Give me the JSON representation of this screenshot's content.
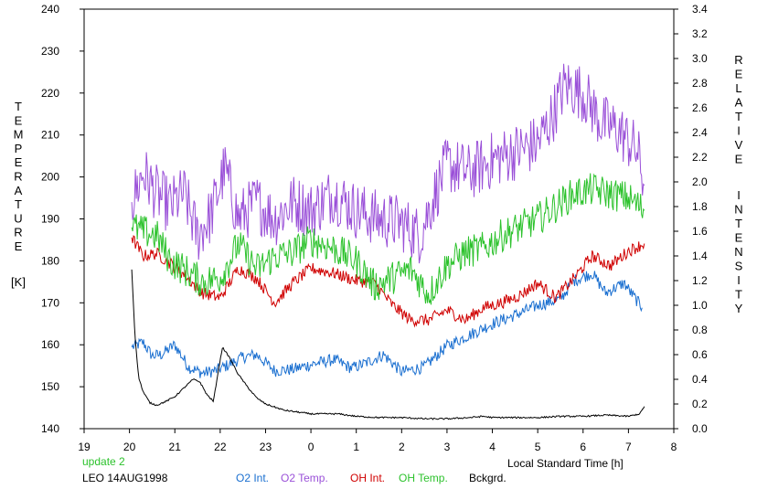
{
  "chart_data": {
    "type": "line",
    "xlabel": "Local Standard Time [h]",
    "x_tick_labels": [
      "19",
      "20",
      "21",
      "22",
      "23",
      "0",
      "1",
      "2",
      "3",
      "4",
      "5",
      "6",
      "7",
      "8"
    ],
    "xlim": [
      19,
      32
    ],
    "y_left": {
      "label_letters": [
        "T",
        "E",
        "M",
        "P",
        "E",
        "R",
        "A",
        "T",
        "U",
        "R",
        "E"
      ],
      "unit": "[K]",
      "ylim": [
        140,
        240
      ],
      "ticks": [
        "140",
        "150",
        "160",
        "170",
        "180",
        "190",
        "200",
        "210",
        "220",
        "230",
        "240"
      ]
    },
    "y_right": {
      "label_word1": [
        "R",
        "E",
        "L",
        "A",
        "T",
        "I",
        "V",
        "E"
      ],
      "label_word2": [
        "I",
        "N",
        "T",
        "E",
        "N",
        "S",
        "I",
        "T",
        "Y"
      ],
      "ylim": [
        0.0,
        3.4
      ],
      "ticks": [
        "0.0",
        "0.2",
        "0.4",
        "0.6",
        "0.8",
        "1.0",
        "1.2",
        "1.4",
        "1.6",
        "1.8",
        "2.0",
        "2.2",
        "2.4",
        "2.6",
        "2.8",
        "3.0",
        "3.2",
        "3.4"
      ]
    },
    "annotations": {
      "update": "update 2",
      "station_date": "LEO 14AUG1998"
    },
    "series": [
      {
        "name": "O2 Int.",
        "axis": "right",
        "color": "#1a6fd0",
        "x": [
          20.05,
          20.3,
          20.5,
          20.7,
          21.0,
          21.3,
          21.6,
          21.9,
          22.2,
          22.5,
          22.8,
          23.2,
          23.6,
          24.0,
          24.5,
          24.9,
          25.2,
          25.6,
          26.0,
          26.5,
          27.0,
          27.5,
          28.0,
          28.5,
          29.0,
          29.5,
          29.8,
          30.2,
          30.5,
          30.9,
          31.3
        ],
        "y": [
          0.66,
          0.7,
          0.59,
          0.6,
          0.68,
          0.5,
          0.45,
          0.47,
          0.52,
          0.58,
          0.6,
          0.47,
          0.48,
          0.52,
          0.56,
          0.49,
          0.53,
          0.6,
          0.46,
          0.5,
          0.67,
          0.76,
          0.85,
          0.92,
          1.0,
          1.05,
          1.2,
          1.26,
          1.1,
          1.18,
          0.98
        ],
        "noise": 0.05
      },
      {
        "name": "O2 Temp.",
        "axis": "left",
        "color": "#9a50d8",
        "x": [
          20.05,
          20.3,
          20.6,
          20.9,
          21.2,
          21.5,
          21.8,
          22.1,
          22.4,
          22.8,
          23.2,
          23.6,
          24.0,
          24.5,
          25.0,
          25.5,
          26.0,
          26.4,
          26.7,
          27.0,
          27.5,
          28.0,
          28.5,
          29.0,
          29.3,
          29.6,
          30.0,
          30.4,
          30.8,
          31.2,
          31.35
        ],
        "y": [
          194,
          201,
          196,
          193,
          196,
          186,
          191,
          202,
          190,
          194,
          190,
          194,
          192,
          196,
          192,
          190,
          189,
          186,
          195,
          203,
          201,
          204,
          206,
          208,
          214,
          222,
          220,
          213,
          211,
          206,
          198
        ],
        "noise": 7
      },
      {
        "name": "OH Int.",
        "axis": "right",
        "color": "#d00000",
        "x": [
          20.05,
          20.3,
          20.6,
          20.9,
          21.2,
          21.6,
          22.0,
          22.4,
          22.8,
          23.2,
          23.6,
          24.0,
          24.5,
          25.0,
          25.4,
          25.8,
          26.2,
          26.6,
          27.0,
          27.4,
          27.8,
          28.2,
          28.6,
          29.0,
          29.4,
          29.8,
          30.2,
          30.6,
          31.0,
          31.35
        ],
        "y": [
          1.55,
          1.4,
          1.42,
          1.34,
          1.25,
          1.1,
          1.06,
          1.3,
          1.22,
          1.02,
          1.18,
          1.3,
          1.26,
          1.2,
          1.18,
          1.0,
          0.88,
          0.88,
          0.96,
          0.88,
          0.98,
          1.02,
          1.08,
          1.18,
          1.06,
          1.22,
          1.4,
          1.32,
          1.44,
          1.5
        ],
        "noise": 0.05
      },
      {
        "name": "OH Temp.",
        "axis": "left",
        "color": "#2cc22c",
        "x": [
          20.05,
          20.3,
          20.6,
          20.9,
          21.2,
          21.6,
          22.0,
          22.4,
          22.8,
          23.2,
          23.6,
          24.0,
          24.5,
          25.0,
          25.4,
          25.8,
          26.2,
          26.6,
          27.0,
          27.4,
          27.8,
          28.2,
          28.6,
          29.0,
          29.4,
          29.8,
          30.2,
          30.6,
          31.0,
          31.35
        ],
        "y": [
          188,
          187,
          186,
          180,
          178,
          175,
          176,
          184,
          178,
          181,
          182,
          185,
          183,
          180,
          174,
          176,
          178,
          172,
          179,
          182,
          183,
          186,
          188,
          190,
          193,
          196,
          197,
          196,
          195,
          192
        ],
        "noise": 4
      },
      {
        "name": "Bckgrd.",
        "axis": "right",
        "color": "#000000",
        "x": [
          20.05,
          20.12,
          20.2,
          20.3,
          20.45,
          20.6,
          20.8,
          21.0,
          21.2,
          21.4,
          21.55,
          21.7,
          21.85,
          21.95,
          22.05,
          22.2,
          22.4,
          22.6,
          22.8,
          23.0,
          23.4,
          24.0,
          24.6,
          25.0,
          25.5,
          26.0,
          26.5,
          27.0,
          27.5,
          27.8,
          28.0,
          28.5,
          29.0,
          29.5,
          30.0,
          30.5,
          31.0,
          31.25,
          31.35
        ],
        "y": [
          1.29,
          0.76,
          0.42,
          0.3,
          0.21,
          0.19,
          0.22,
          0.26,
          0.33,
          0.4,
          0.38,
          0.28,
          0.22,
          0.45,
          0.66,
          0.58,
          0.44,
          0.34,
          0.25,
          0.2,
          0.15,
          0.12,
          0.12,
          0.1,
          0.09,
          0.09,
          0.08,
          0.08,
          0.09,
          0.1,
          0.09,
          0.09,
          0.09,
          0.1,
          0.1,
          0.11,
          0.1,
          0.12,
          0.18
        ],
        "noise": 0.006
      }
    ]
  }
}
